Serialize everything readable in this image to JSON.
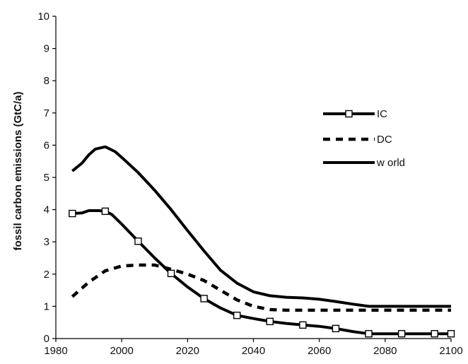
{
  "chart_data": {
    "type": "line",
    "title": "",
    "xlabel": "",
    "ylabel": "fossil carbon emissions (GtC/a)",
    "xlim": [
      1980,
      2100
    ],
    "ylim": [
      0,
      10
    ],
    "x_ticks": [
      "1980",
      "2000",
      "2020",
      "2040",
      "2060",
      "2080",
      "2100"
    ],
    "y_ticks": [
      "0",
      "1",
      "2",
      "3",
      "4",
      "5",
      "6",
      "7",
      "8",
      "9",
      "10"
    ],
    "grid": false,
    "legend_position": "right",
    "series": [
      {
        "name": "IC",
        "style": "solid-square-markers",
        "color": "#000000",
        "points": [
          [
            1985,
            3.88
          ],
          [
            1988,
            3.9
          ],
          [
            1990,
            3.97
          ],
          [
            1993,
            3.97
          ],
          [
            1995,
            3.95
          ],
          [
            1997,
            3.85
          ],
          [
            2000,
            3.55
          ],
          [
            2005,
            3.02
          ],
          [
            2010,
            2.5
          ],
          [
            2015,
            2.02
          ],
          [
            2020,
            1.6
          ],
          [
            2025,
            1.24
          ],
          [
            2030,
            0.95
          ],
          [
            2035,
            0.72
          ],
          [
            2040,
            0.62
          ],
          [
            2045,
            0.53
          ],
          [
            2050,
            0.47
          ],
          [
            2055,
            0.42
          ],
          [
            2060,
            0.38
          ],
          [
            2065,
            0.31
          ],
          [
            2070,
            0.22
          ],
          [
            2075,
            0.15
          ],
          [
            2080,
            0.15
          ],
          [
            2085,
            0.15
          ],
          [
            2090,
            0.15
          ],
          [
            2095,
            0.15
          ],
          [
            2100,
            0.15
          ]
        ],
        "marker_x": [
          1985,
          1995,
          2005,
          2015,
          2025,
          2035,
          2045,
          2055,
          2065,
          2075,
          2085,
          2095,
          2100
        ]
      },
      {
        "name": "DC",
        "style": "dashed",
        "color": "#000000",
        "points": [
          [
            1985,
            1.3
          ],
          [
            1990,
            1.75
          ],
          [
            1995,
            2.1
          ],
          [
            2000,
            2.25
          ],
          [
            2005,
            2.28
          ],
          [
            2010,
            2.28
          ],
          [
            2015,
            2.15
          ],
          [
            2020,
            2.0
          ],
          [
            2025,
            1.8
          ],
          [
            2030,
            1.5
          ],
          [
            2035,
            1.2
          ],
          [
            2040,
            1.0
          ],
          [
            2045,
            0.9
          ],
          [
            2050,
            0.88
          ],
          [
            2060,
            0.88
          ],
          [
            2070,
            0.88
          ],
          [
            2080,
            0.88
          ],
          [
            2090,
            0.88
          ],
          [
            2100,
            0.88
          ]
        ]
      },
      {
        "name": "w orld",
        "style": "solid",
        "color": "#000000",
        "points": [
          [
            1985,
            5.2
          ],
          [
            1988,
            5.45
          ],
          [
            1990,
            5.7
          ],
          [
            1992,
            5.88
          ],
          [
            1995,
            5.95
          ],
          [
            1998,
            5.8
          ],
          [
            2000,
            5.62
          ],
          [
            2005,
            5.15
          ],
          [
            2010,
            4.6
          ],
          [
            2015,
            4.0
          ],
          [
            2020,
            3.35
          ],
          [
            2025,
            2.72
          ],
          [
            2030,
            2.12
          ],
          [
            2035,
            1.72
          ],
          [
            2040,
            1.45
          ],
          [
            2045,
            1.33
          ],
          [
            2050,
            1.28
          ],
          [
            2055,
            1.26
          ],
          [
            2060,
            1.22
          ],
          [
            2065,
            1.15
          ],
          [
            2070,
            1.07
          ],
          [
            2075,
            1.0
          ],
          [
            2080,
            1.0
          ],
          [
            2085,
            1.0
          ],
          [
            2090,
            1.0
          ],
          [
            2095,
            1.0
          ],
          [
            2100,
            1.0
          ]
        ]
      }
    ]
  }
}
